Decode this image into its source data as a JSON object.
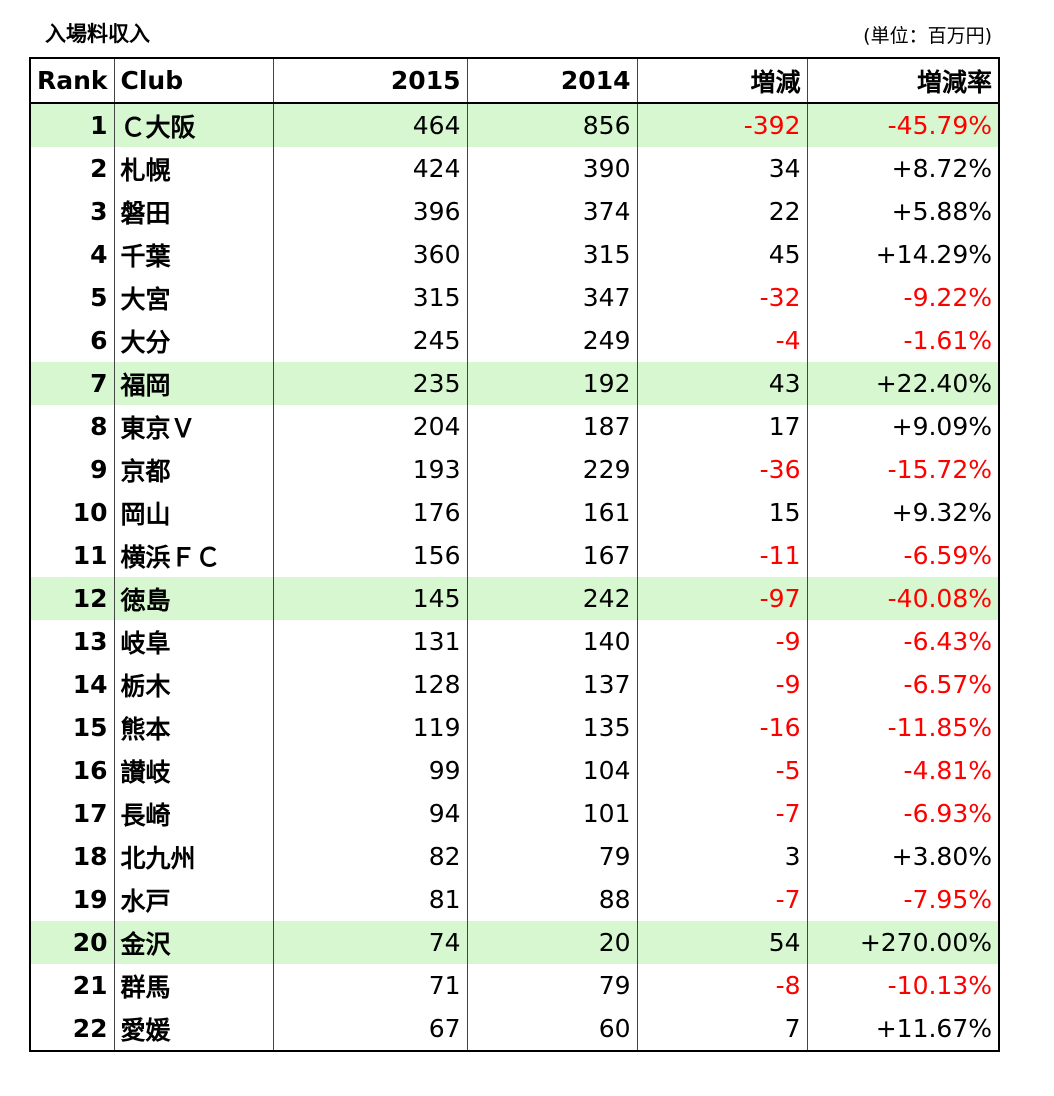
{
  "title": "入場料収入",
  "unit": "(単位：百万円)",
  "table": {
    "header": [
      "Rank",
      "Club",
      "2015",
      "2014",
      "増減",
      "増減率"
    ],
    "rows": [
      [
        "1",
        "Ｃ大阪",
        "464",
        "856",
        "-392",
        "-45.79%"
      ],
      [
        "2",
        "札幌",
        "424",
        "390",
        "34",
        "+8.72%"
      ],
      [
        "3",
        "磐田",
        "396",
        "374",
        "22",
        "+5.88%"
      ],
      [
        "4",
        "千葉",
        "360",
        "315",
        "45",
        "+14.29%"
      ],
      [
        "5",
        "大宮",
        "315",
        "347",
        "-32",
        "-9.22%"
      ],
      [
        "6",
        "大分",
        "245",
        "249",
        "-4",
        "-1.61%"
      ],
      [
        "7",
        "福岡",
        "235",
        "192",
        "43",
        "+22.40%"
      ],
      [
        "8",
        "東京Ｖ",
        "204",
        "187",
        "17",
        "+9.09%"
      ],
      [
        "9",
        "京都",
        "193",
        "229",
        "-36",
        "-15.72%"
      ],
      [
        "10",
        "岡山",
        "176",
        "161",
        "15",
        "+9.32%"
      ],
      [
        "11",
        "横浜ＦＣ",
        "156",
        "167",
        "-11",
        "-6.59%"
      ],
      [
        "12",
        "徳島",
        "145",
        "242",
        "-97",
        "-40.08%"
      ],
      [
        "13",
        "岐阜",
        "131",
        "140",
        "-9",
        "-6.43%"
      ],
      [
        "14",
        "栃木",
        "128",
        "137",
        "-9",
        "-6.57%"
      ],
      [
        "15",
        "熊本",
        "119",
        "135",
        "-16",
        "-11.85%"
      ],
      [
        "16",
        "讃岐",
        "99",
        "104",
        "-5",
        "-4.81%"
      ],
      [
        "17",
        "長崎",
        "94",
        "101",
        "-7",
        "-6.93%"
      ],
      [
        "18",
        "北九州",
        "82",
        "79",
        "3",
        "+3.80%"
      ],
      [
        "19",
        "水戸",
        "81",
        "88",
        "-7",
        "-7.95%"
      ],
      [
        "20",
        "金沢",
        "74",
        "20",
        "54",
        "+270.00%"
      ],
      [
        "21",
        "群馬",
        "71",
        "79",
        "-8",
        "-10.13%"
      ],
      [
        "22",
        "愛媛",
        "67",
        "60",
        "7",
        "+11.67%"
      ]
    ],
    "highlighted_rows": [
      0,
      6,
      11,
      19
    ],
    "highlight_color": "#d6f7cf",
    "negative_color": "#ff0000"
  }
}
